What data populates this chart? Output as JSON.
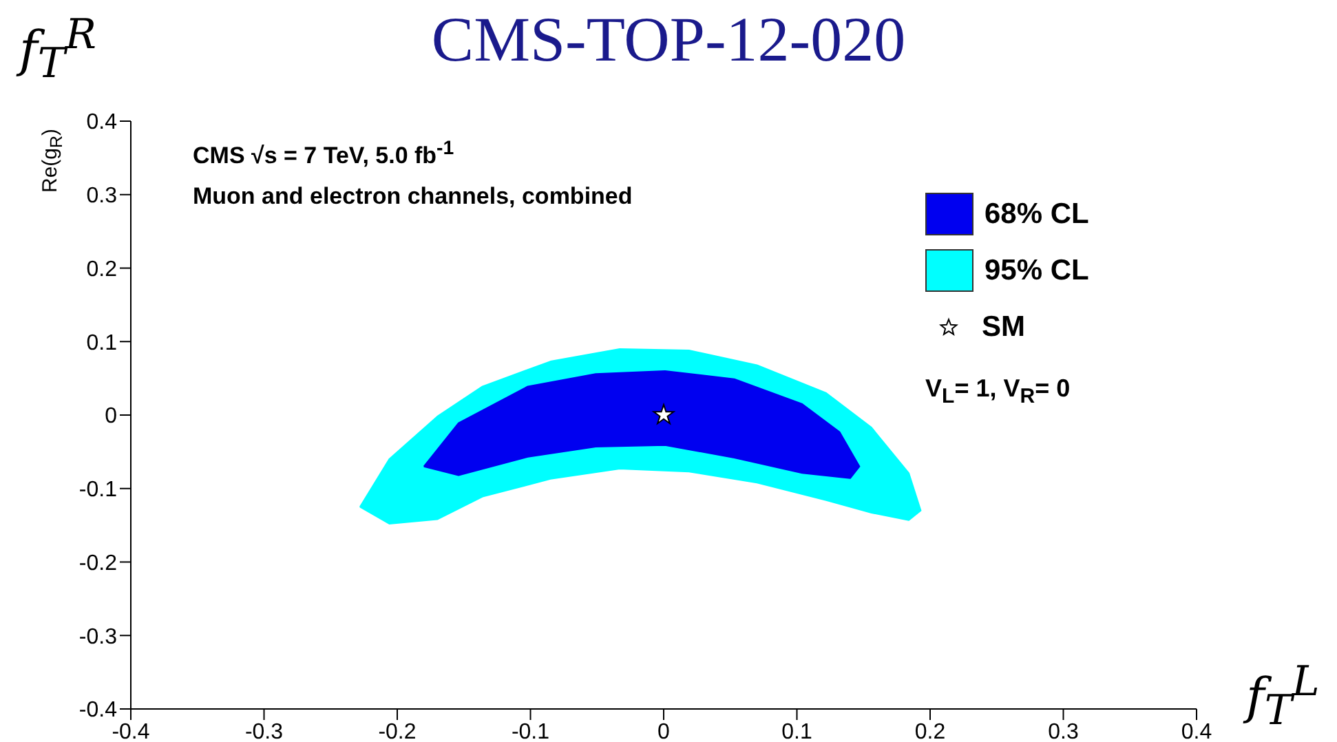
{
  "chart_data": {
    "type": "area",
    "title": "CMS-TOP-12-020",
    "xlabel": "f$_{T}$$^{L}$",
    "ylabel": "Re(g$_{R}$)",
    "annotations": [
      "f$_{T}$$^{R}$",
      "CMS √s = 7 TeV, 5.0 fb$^{-1}$",
      "Muon and electron channels, combined",
      "V$_{L}$= 1, V$_{R}$= 0"
    ],
    "series": [
      {
        "name": "68% CL",
        "type": "area",
        "color": "#0000f0",
        "x": [
          -0.18,
          -0.154,
          -0.102,
          -0.051,
          0.001,
          0.053,
          0.104,
          0.132,
          0.147,
          0.14,
          0.104,
          0.053,
          0.001,
          -0.051,
          -0.102,
          -0.154
        ],
        "values": [
          -0.07,
          -0.011,
          0.039,
          0.056,
          0.06,
          0.049,
          0.015,
          -0.023,
          -0.07,
          -0.086,
          -0.079,
          -0.058,
          -0.041,
          -0.043,
          -0.057,
          -0.082
        ]
      },
      {
        "name": "95% CL",
        "type": "area",
        "color": "#00ffff",
        "x": [
          -0.228,
          -0.206,
          -0.17,
          -0.136,
          -0.085,
          -0.033,
          0.019,
          0.07,
          0.122,
          0.156,
          0.184,
          0.193,
          0.184,
          0.156,
          0.122,
          0.07,
          0.019,
          -0.033,
          -0.085,
          -0.136,
          -0.17,
          -0.206
        ],
        "values": [
          -0.125,
          -0.06,
          -0.002,
          0.039,
          0.073,
          0.09,
          0.088,
          0.068,
          0.03,
          -0.017,
          -0.079,
          -0.13,
          -0.143,
          -0.133,
          -0.116,
          -0.092,
          -0.077,
          -0.073,
          -0.087,
          -0.111,
          -0.142,
          -0.148
        ]
      },
      {
        "name": "SM",
        "type": "scatter",
        "color": "#ffffff",
        "marker": "star",
        "x": [
          0
        ],
        "values": [
          0
        ]
      }
    ],
    "xlim": [
      -0.4,
      0.4
    ],
    "ylim": [
      -0.4,
      0.4
    ],
    "xticks": [
      -0.4,
      -0.3,
      -0.2,
      -0.1,
      0,
      0.1,
      0.2,
      0.3,
      0.4
    ],
    "yticks": [
      -0.4,
      -0.3,
      -0.2,
      -0.1,
      0,
      0.1,
      0.2,
      0.3,
      0.4
    ],
    "legend": "top right"
  }
}
